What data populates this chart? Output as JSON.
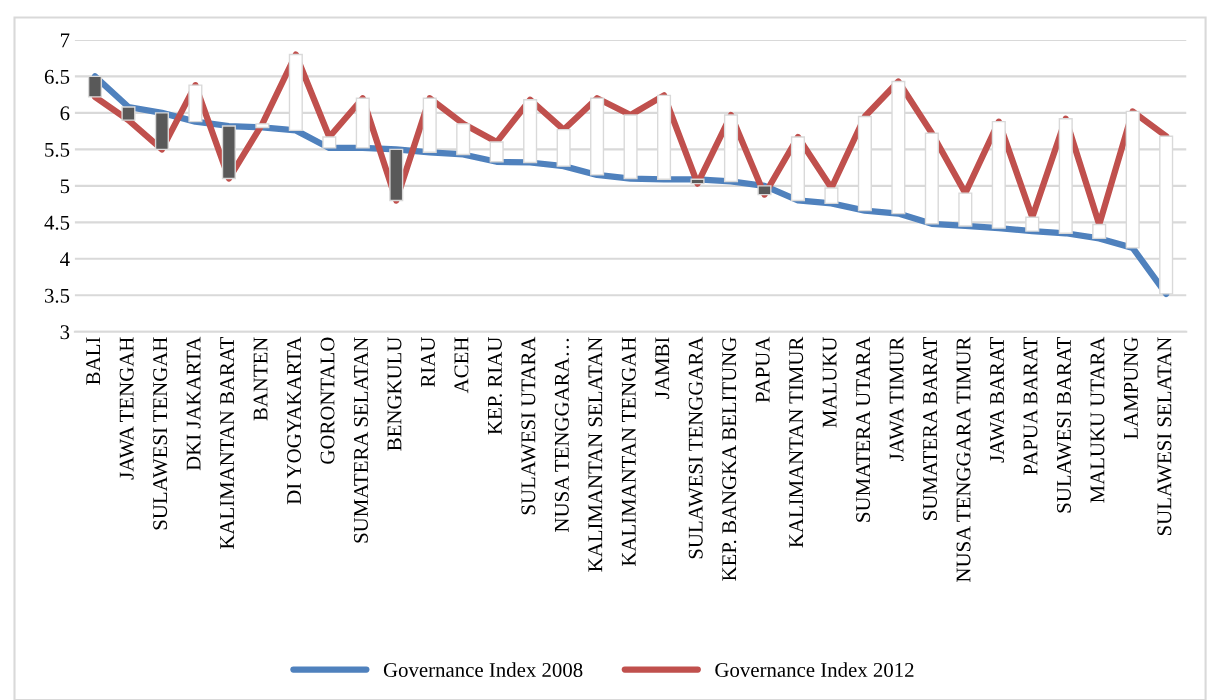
{
  "chart_data": {
    "type": "line",
    "categories": [
      "BALI",
      "JAWA TENGAH",
      "SULAWESI TENGAH",
      "DKI JAKARTA",
      "KALIMANTAN BARAT",
      "BANTEN",
      "DI YOGYAKARTA",
      "GORONTALO",
      "SUMATERA SELATAN",
      "BENGKULU",
      "RIAU",
      "ACEH",
      "KEP. RIAU",
      "SULAWESI UTARA",
      "NUSA TENGGARA…",
      "KALIMANTAN SELATAN",
      "KALIMANTAN TENGAH",
      "JAMBI",
      "SULAWESI TENGGARA",
      "KEP. BANGKA BELITUNG",
      "PAPUA",
      "KALIMANTAN TIMUR",
      "MALUKU",
      "SUMATERA UTARA",
      "JAWA TIMUR",
      "SUMATERA BARAT",
      "NUSA TENGGARA TIMUR",
      "JAWA BARAT",
      "PAPUA BARAT",
      "SULAWESI BARAT",
      "MALUKU UTARA",
      "LAMPUNG",
      "SULAWESI SELATAN"
    ],
    "series": [
      {
        "name": "Governance Index 2008",
        "color": "#4f81bd",
        "values": [
          6.5,
          6.08,
          6.0,
          5.88,
          5.82,
          5.8,
          5.76,
          5.52,
          5.52,
          5.5,
          5.46,
          5.43,
          5.33,
          5.32,
          5.27,
          5.15,
          5.1,
          5.09,
          5.09,
          5.06,
          5.0,
          4.8,
          4.76,
          4.66,
          4.62,
          4.48,
          4.45,
          4.42,
          4.38,
          4.35,
          4.28,
          4.15,
          3.52
        ]
      },
      {
        "name": "Governance Index 2012",
        "color": "#c0504d",
        "values": [
          6.22,
          5.9,
          5.5,
          6.38,
          5.1,
          5.85,
          6.8,
          5.67,
          6.2,
          4.8,
          6.2,
          5.85,
          5.6,
          6.18,
          5.77,
          6.2,
          5.97,
          6.24,
          5.03,
          5.97,
          4.88,
          5.67,
          4.97,
          5.95,
          6.43,
          5.72,
          4.9,
          5.88,
          4.57,
          5.92,
          4.47,
          6.02,
          5.68
        ]
      },
      {
        "type": "bar",
        "base": [
          6.5,
          6.08,
          6.0,
          5.88,
          5.82,
          5.8,
          5.76,
          5.52,
          5.52,
          5.5,
          5.46,
          5.43,
          5.33,
          5.32,
          5.27,
          5.15,
          5.1,
          5.09,
          5.09,
          5.06,
          5.0,
          4.8,
          4.76,
          4.66,
          4.62,
          4.48,
          4.45,
          4.42,
          4.38,
          4.35,
          4.28,
          4.15,
          3.52
        ],
        "values": [
          -0.28,
          -0.18,
          -0.5,
          0.5,
          -0.72,
          0.05,
          1.04,
          0.15,
          0.68,
          -0.7,
          0.74,
          0.42,
          0.27,
          0.86,
          0.5,
          1.05,
          0.87,
          1.15,
          -0.06,
          0.91,
          -0.12,
          0.87,
          0.21,
          1.29,
          1.81,
          1.24,
          0.45,
          1.46,
          0.19,
          1.57,
          0.19,
          1.87,
          2.16
        ],
        "colors": [
          "#595959",
          "#595959",
          "#595959",
          "#ffffff",
          "#595959",
          "#ffffff",
          "#ffffff",
          "#ffffff",
          "#ffffff",
          "#595959",
          "#ffffff",
          "#ffffff",
          "#ffffff",
          "#ffffff",
          "#ffffff",
          "#ffffff",
          "#ffffff",
          "#ffffff",
          "#595959",
          "#ffffff",
          "#595959",
          "#ffffff",
          "#ffffff",
          "#ffffff",
          "#ffffff",
          "#ffffff",
          "#ffffff",
          "#ffffff",
          "#ffffff",
          "#ffffff",
          "#ffffff",
          "#ffffff",
          "#ffffff"
        ]
      }
    ],
    "ylim": [
      3,
      7
    ],
    "yticks": [
      3,
      3.5,
      4,
      4.5,
      5,
      5.5,
      6,
      6.5,
      7
    ],
    "grid": "y",
    "legend": "bottom",
    "marker": "none",
    "line_style": "solid"
  }
}
